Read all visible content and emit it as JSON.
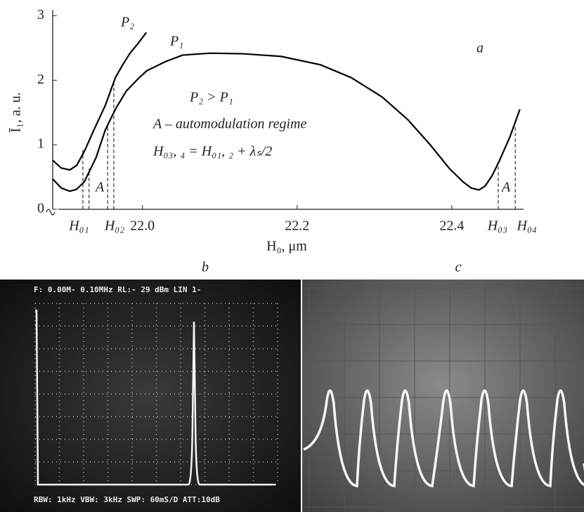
{
  "chart_data": {
    "type": "line",
    "label": "a",
    "xlabel": "H₀, μm",
    "ylabel": "Ī₁, a. u.",
    "xlim": [
      21.884,
      22.5
    ],
    "ylim": [
      0,
      3.2
    ],
    "xticks": [
      {
        "value": 22,
        "label": "22.0"
      },
      22.2,
      22.4
    ],
    "yticks": [
      0,
      1,
      2,
      3
    ],
    "x_markers": [
      {
        "value": 21.918,
        "label": "H₀₁"
      },
      {
        "value": 21.964,
        "label": "H₀₂"
      },
      {
        "value": 22.459,
        "label": "H₀₃"
      },
      {
        "value": 22.497,
        "label": "H₀₄"
      }
    ],
    "dashed_lines": [
      {
        "x": 21.923,
        "y": 0.92
      },
      {
        "x": 21.931,
        "y": 0.63
      },
      {
        "x": 21.955,
        "y": 1.3
      },
      {
        "x": 21.963,
        "y": 1.96
      },
      {
        "x": 22.46,
        "y": 0.66
      },
      {
        "x": 22.482,
        "y": 1.3
      }
    ],
    "series": [
      {
        "name": "P₁",
        "color": "#000000",
        "x": [
          21.884,
          21.895,
          21.906,
          21.915,
          21.925,
          21.94,
          21.952,
          21.965,
          21.979,
          21.995,
          22.006,
          22.03,
          22.052,
          22.088,
          22.13,
          22.179,
          22.23,
          22.27,
          22.31,
          22.343,
          22.372,
          22.397,
          22.415,
          22.425,
          22.435,
          22.443,
          22.452,
          22.461,
          22.475,
          22.488
        ],
        "values": [
          0.47,
          0.33,
          0.28,
          0.31,
          0.43,
          0.8,
          1.23,
          1.55,
          1.83,
          2.03,
          2.15,
          2.29,
          2.39,
          2.42,
          2.41,
          2.37,
          2.24,
          2.04,
          1.74,
          1.39,
          1.0,
          0.63,
          0.42,
          0.33,
          0.3,
          0.36,
          0.52,
          0.74,
          1.12,
          1.55
        ]
      },
      {
        "name": "P₂",
        "color": "#000000",
        "x": [
          21.884,
          21.895,
          21.906,
          21.915,
          21.925,
          21.938,
          21.952,
          21.965,
          21.975,
          21.984,
          21.995,
          22.005
        ],
        "values": [
          0.76,
          0.64,
          0.61,
          0.68,
          0.9,
          1.25,
          1.61,
          2.04,
          2.25,
          2.42,
          2.58,
          2.74
        ]
      }
    ],
    "annotations": [
      "P₂ > P₁",
      "A – automodulation regime",
      "H₀₃, ₄ = H₀₁, ₂ + λₛ/2",
      "A",
      "A"
    ]
  },
  "panels": [
    {
      "label": "b",
      "header": "F:  0.00M-  0.10MHz  RL:-  29 dBm  LIN  1-",
      "footer": "RBW: 1kHz  VBW: 3kHz  SWP: 60mS/D  ATT:10dB"
    },
    {
      "label": "c"
    }
  ]
}
